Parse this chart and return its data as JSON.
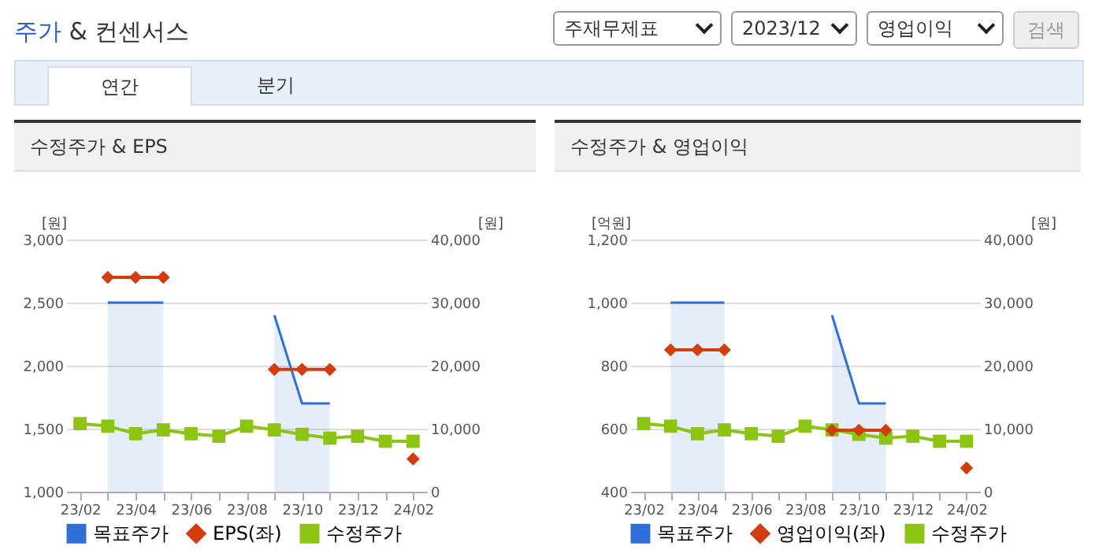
{
  "chart_data": [
    {
      "type": "other",
      "title": "주가 & 컨센서스",
      "annotations": [
        "주재무제표",
        "2023/12",
        "영업이익",
        "검색",
        "연간",
        "분기"
      ]
    },
    {
      "type": "line",
      "title": "수정주가 & EPS",
      "categories": [
        "23/02",
        null,
        "23/04",
        null,
        "23/06",
        null,
        "23/08",
        null,
        "23/10",
        null,
        "23/12",
        null,
        "24/02"
      ],
      "ylabel": "[원]",
      "y2label": "[원]",
      "ylim": [
        1000,
        3000
      ],
      "yticks": [
        {
          "value": 1000,
          "label": "1,000"
        },
        {
          "value": 1500,
          "label": "1,500"
        },
        {
          "value": 2000,
          "label": "2,000"
        },
        {
          "value": 2500,
          "label": "2,500"
        },
        {
          "value": 3000,
          "label": "3,000"
        }
      ],
      "y2lim": [
        0,
        40000
      ],
      "y2ticks": [
        0,
        {
          "value": 10000,
          "label": "10,000"
        },
        {
          "value": 20000,
          "label": "20,000"
        },
        {
          "value": 30000,
          "label": "30,000"
        },
        {
          "value": 40000,
          "label": "40,000"
        }
      ],
      "grid": "y",
      "legend": "bottom",
      "series": [
        {
          "name": "목표주가",
          "type": "area",
          "axis": "y2",
          "color": "#2f6fd8",
          "values": [
            null,
            30000,
            30000,
            30000,
            null,
            null,
            null,
            28000,
            14000,
            14000,
            null,
            null,
            null
          ]
        },
        {
          "name": "EPS(좌)",
          "type": "line",
          "marker": "diamond",
          "color": "#d33c0c",
          "values": [
            null,
            2700,
            2700,
            2700,
            null,
            null,
            null,
            1970,
            1970,
            1970,
            null,
            null,
            1260
          ]
        },
        {
          "name": "수정주가",
          "type": "line",
          "marker": "square",
          "axis": "y2",
          "color": "#8cc412",
          "values": [
            10800,
            10400,
            9200,
            9800,
            9200,
            8800,
            10400,
            9800,
            9100,
            8500,
            8800,
            8000,
            8000
          ]
        }
      ]
    },
    {
      "type": "line",
      "title": "수정주가 & 영업이익",
      "categories": [
        "23/02",
        null,
        "23/04",
        null,
        "23/06",
        null,
        "23/08",
        null,
        "23/10",
        null,
        "23/12",
        null,
        "24/02"
      ],
      "ylabel": "[억원]",
      "y2label": "[원]",
      "ylim": [
        400,
        1200
      ],
      "yticks": [
        400,
        600,
        800,
        {
          "value": 1000,
          "label": "1,000"
        },
        {
          "value": 1200,
          "label": "1,200"
        }
      ],
      "y2lim": [
        0,
        40000
      ],
      "y2ticks": [
        0,
        {
          "value": 10000,
          "label": "10,000"
        },
        {
          "value": 20000,
          "label": "20,000"
        },
        {
          "value": 30000,
          "label": "30,000"
        },
        {
          "value": 40000,
          "label": "40,000"
        }
      ],
      "grid": "y",
      "legend": "bottom",
      "series": [
        {
          "name": "목표주가",
          "type": "area",
          "axis": "y2",
          "color": "#2f6fd8",
          "values": [
            null,
            30000,
            30000,
            30000,
            null,
            null,
            null,
            28000,
            14000,
            14000,
            null,
            null,
            null
          ]
        },
        {
          "name": "영업이익(좌)",
          "type": "line",
          "marker": "diamond",
          "color": "#d33c0c",
          "values": [
            null,
            850,
            850,
            850,
            null,
            null,
            null,
            595,
            595,
            595,
            null,
            null,
            475
          ]
        },
        {
          "name": "수정주가",
          "type": "line",
          "marker": "square",
          "axis": "y2",
          "color": "#8cc412",
          "values": [
            10800,
            10400,
            9200,
            9800,
            9200,
            8800,
            10400,
            9800,
            9100,
            8500,
            8800,
            8000,
            8000
          ]
        }
      ]
    }
  ]
}
